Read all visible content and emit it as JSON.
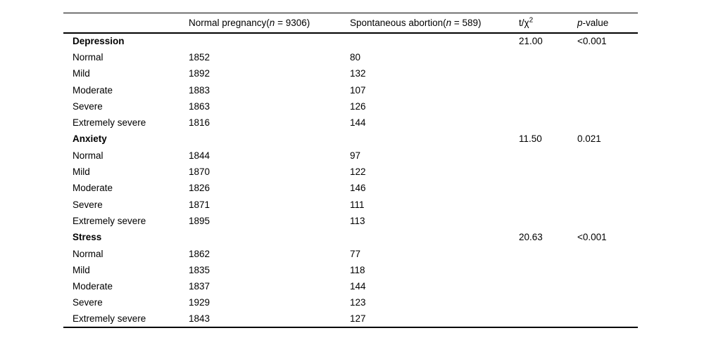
{
  "table": {
    "header": {
      "row_label": "",
      "normal_pregnancy": {
        "prefix": "Normal pregnancy(",
        "n": "n",
        "suffix": " = 9306)"
      },
      "spontaneous_abortion": {
        "prefix": "Spontaneous abortion(",
        "n": "n",
        "suffix": " = 589)"
      },
      "statistic": {
        "base": "t/χ",
        "sup": "2"
      },
      "pvalue": {
        "p": "p",
        "suffix": "-value"
      }
    },
    "sections": [
      {
        "label": "Depression",
        "stat": "21.00",
        "pvalue": "<0.001",
        "rows": [
          {
            "label": "Normal",
            "normal_pregnancy": "1852",
            "spontaneous_abortion": "80"
          },
          {
            "label": "Mild",
            "normal_pregnancy": "1892",
            "spontaneous_abortion": "132"
          },
          {
            "label": "Moderate",
            "normal_pregnancy": "1883",
            "spontaneous_abortion": "107"
          },
          {
            "label": "Severe",
            "normal_pregnancy": "1863",
            "spontaneous_abortion": "126"
          },
          {
            "label": "Extremely severe",
            "normal_pregnancy": "1816",
            "spontaneous_abortion": "144"
          }
        ]
      },
      {
        "label": "Anxiety",
        "stat": "11.50",
        "pvalue": "0.021",
        "rows": [
          {
            "label": "Normal",
            "normal_pregnancy": "1844",
            "spontaneous_abortion": "97"
          },
          {
            "label": "Mild",
            "normal_pregnancy": "1870",
            "spontaneous_abortion": "122"
          },
          {
            "label": "Moderate",
            "normal_pregnancy": "1826",
            "spontaneous_abortion": "146"
          },
          {
            "label": "Severe",
            "normal_pregnancy": "1871",
            "spontaneous_abortion": "111"
          },
          {
            "label": "Extremely severe",
            "normal_pregnancy": "1895",
            "spontaneous_abortion": "113"
          }
        ]
      },
      {
        "label": "Stress",
        "stat": "20.63",
        "pvalue": "<0.001",
        "rows": [
          {
            "label": "Normal",
            "normal_pregnancy": "1862",
            "spontaneous_abortion": "77"
          },
          {
            "label": "Mild",
            "normal_pregnancy": "1835",
            "spontaneous_abortion": "118"
          },
          {
            "label": "Moderate",
            "normal_pregnancy": "1837",
            "spontaneous_abortion": "144"
          },
          {
            "label": "Severe",
            "normal_pregnancy": "1929",
            "spontaneous_abortion": "123"
          },
          {
            "label": "Extremely severe",
            "normal_pregnancy": "1843",
            "spontaneous_abortion": "127"
          }
        ]
      }
    ],
    "text_color": "#000000",
    "background_color": "#ffffff"
  }
}
